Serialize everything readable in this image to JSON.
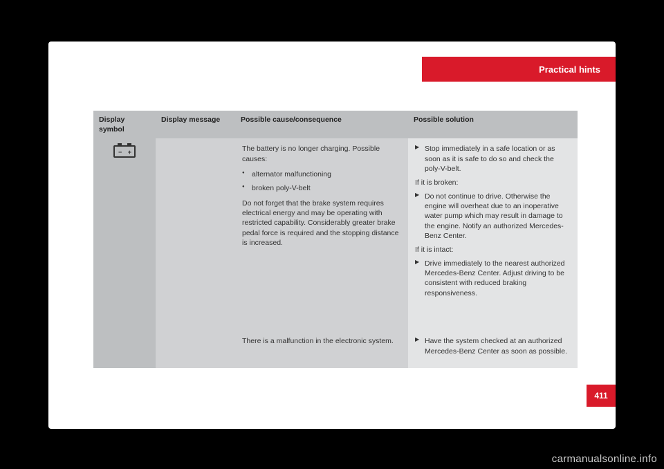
{
  "header": {
    "section_title": "Practical hints"
  },
  "page_number": "411",
  "table": {
    "headers": {
      "symbol": "Display symbol",
      "message": "Display message",
      "cause": "Possible cause/consequence",
      "solution": "Possible solution"
    },
    "rows": [
      {
        "symbol_icon": "battery-icon",
        "message": "",
        "cause": {
          "intro": "The battery is no longer charging. Possible causes:",
          "bullets": [
            "alternator malfunctioning",
            "broken poly-V-belt"
          ],
          "note": "Do not forget that the brake system requires electrical energy and may be operating with restricted capability. Considerably greater brake pedal force is required and the stopping distance is increased."
        },
        "solution": {
          "action1": "Stop immediately in a safe location or as soon as it is safe to do so and check the poly-V-belt.",
          "broken_label": "If it is broken:",
          "action2": "Do not continue to drive. Otherwise the engine will overheat due to an inoperative water pump which may result in damage to the engine. Notify an authorized Mercedes-Benz Center.",
          "intact_label": "If it is intact:",
          "action3": "Drive immediately to the nearest authorized Mercedes-Benz Center. Adjust driving to be consistent with reduced braking responsiveness."
        }
      },
      {
        "message": "",
        "cause_text": "There is a malfunction in the electronic system.",
        "solution_action": "Have the system checked at an authorized Mercedes-Benz Center as soon as possible."
      }
    ]
  },
  "watermark": "carmanualsonline.info",
  "colors": {
    "accent": "#d91a2a",
    "page_bg": "#ffffff",
    "body_bg": "#000000",
    "cell_dark": "#bdbfc1",
    "cell_mid": "#d0d1d3",
    "cell_light": "#e3e4e5"
  }
}
